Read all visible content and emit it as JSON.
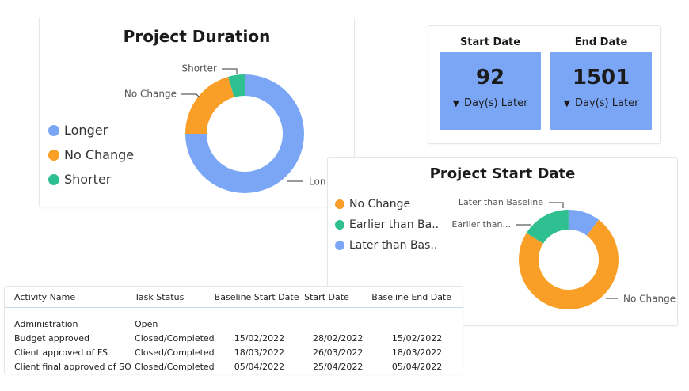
{
  "project_duration": {
    "title": "Project Duration",
    "legend": [
      {
        "label": "Longer",
        "color": "#7ba6f5"
      },
      {
        "label": "No Change",
        "color": "#f99e27"
      },
      {
        "label": "Shorter",
        "color": "#2fc092"
      }
    ],
    "slice_labels": [
      "Lon",
      "No Change",
      "Shorter"
    ]
  },
  "dates": {
    "start": {
      "label": "Start Date",
      "value": "92",
      "sub": "Day(s) Later"
    },
    "end": {
      "label": "End Date",
      "value": "1501",
      "sub": "Day(s) Later"
    },
    "box_color": "#7ba6f5"
  },
  "project_start_date": {
    "title": "Project Start Date",
    "legend": [
      {
        "label": "No Change",
        "color": "#f99e27"
      },
      {
        "label": "Earlier than Ba...",
        "color": "#2fc092"
      },
      {
        "label": "Later than Bas...",
        "color": "#7ba6f5"
      }
    ],
    "slice_labels": [
      "Later than Baseline",
      "Earlier than...",
      "No Change"
    ]
  },
  "activity_table": {
    "columns": [
      "Activity Name",
      "Task Status",
      "Baseline Start Date",
      "Start Date",
      "Baseline End Date"
    ],
    "rows": [
      [
        "Administration",
        "Open",
        "",
        "",
        ""
      ],
      [
        "Budget approved",
        "Closed/Completed",
        "15/02/2022",
        "28/02/2022",
        "15/02/2022"
      ],
      [
        "Client approved of FS",
        "Closed/Completed",
        "18/03/2022",
        "26/03/2022",
        "18/03/2022"
      ],
      [
        "Client final approved of SO",
        "Closed/Completed",
        "05/04/2022",
        "25/04/2022",
        "05/04/2022"
      ]
    ]
  },
  "chart_data": [
    {
      "type": "pie",
      "title": "Project Duration",
      "categories": [
        "Longer",
        "No Change",
        "Shorter"
      ],
      "values": [
        0.75,
        0.205,
        0.045
      ],
      "donut": true,
      "legend_position": "left"
    },
    {
      "type": "pie",
      "title": "Project Start Date",
      "categories": [
        "No Change",
        "Earlier than Baseline",
        "Later than Baseline"
      ],
      "values": [
        0.737,
        0.16,
        0.103
      ],
      "donut": true,
      "legend_position": "left"
    }
  ]
}
